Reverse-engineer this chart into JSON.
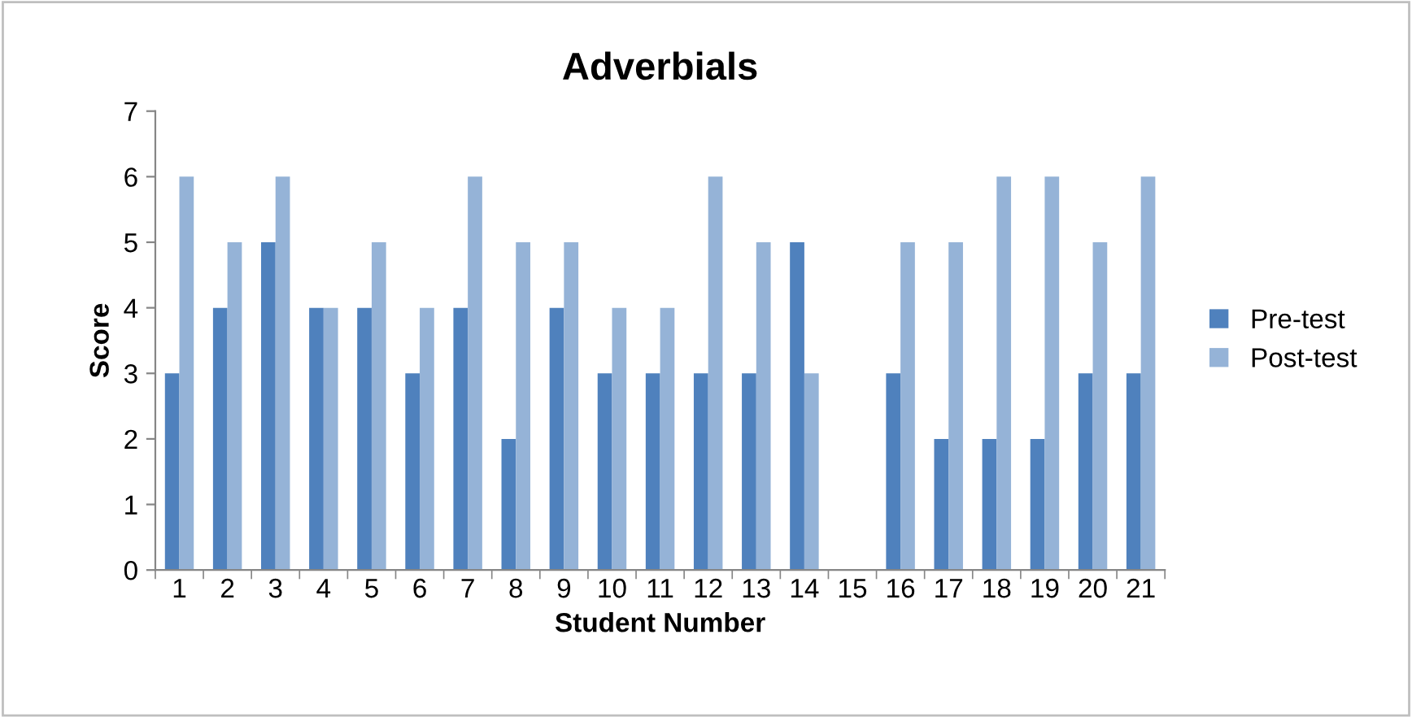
{
  "chart_data": {
    "type": "bar",
    "title": "Adverbials",
    "xlabel": "Student Number",
    "ylabel": "Score",
    "categories": [
      "1",
      "2",
      "3",
      "4",
      "5",
      "6",
      "7",
      "8",
      "9",
      "10",
      "11",
      "12",
      "13",
      "14",
      "15",
      "16",
      "17",
      "18",
      "19",
      "20",
      "21"
    ],
    "series": [
      {
        "name": "Pre-test",
        "color": "#4f81bd",
        "values": [
          3,
          4,
          5,
          4,
          4,
          3,
          4,
          2,
          4,
          3,
          3,
          3,
          3,
          5,
          0,
          3,
          2,
          2,
          2,
          3,
          3
        ]
      },
      {
        "name": "Post-test",
        "color": "#95b3d7",
        "values": [
          6,
          5,
          6,
          4,
          5,
          4,
          6,
          5,
          5,
          4,
          4,
          6,
          5,
          3,
          0,
          5,
          5,
          6,
          6,
          5,
          6
        ]
      }
    ],
    "ylim": [
      0,
      7
    ],
    "yticks": [
      0,
      1,
      2,
      3,
      4,
      5,
      6,
      7
    ],
    "grid": false,
    "legend": "right"
  }
}
